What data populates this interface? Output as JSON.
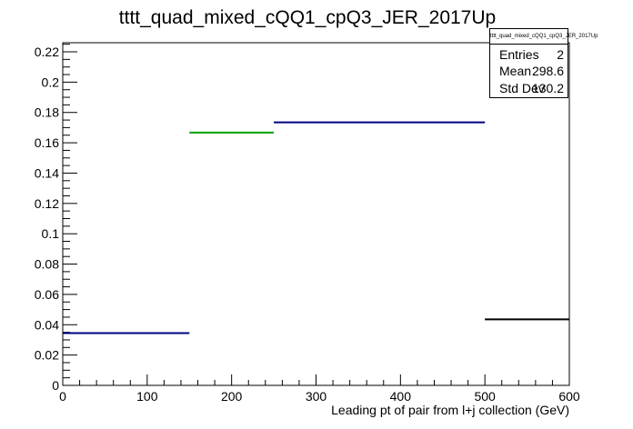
{
  "chart_data": {
    "type": "histogram",
    "title": "tttt_quad_mixed_cQQ1_cpQ3_JER_2017Up",
    "xlabel": "Leading pt of pair from l+j collection (GeV)",
    "ylabel": "",
    "xlim": [
      0,
      600
    ],
    "ylim": [
      0,
      0.226
    ],
    "x_ticks": [
      "0",
      "100",
      "200",
      "300",
      "400",
      "500",
      "600"
    ],
    "y_ticks": [
      "0",
      "0.02",
      "0.04",
      "0.06",
      "0.08",
      "0.1",
      "0.12",
      "0.14",
      "0.16",
      "0.18",
      "0.2",
      "0.22"
    ],
    "bins": [
      {
        "x0": 0,
        "x1": 150,
        "y": 0.0345,
        "color": "#000080"
      },
      {
        "x0": 150,
        "x1": 250,
        "y": 0.1667,
        "color": "#00a000"
      },
      {
        "x0": 250,
        "x1": 500,
        "y": 0.1735,
        "color": "#000080"
      },
      {
        "x0": 500,
        "x1": 600,
        "y": 0.0435,
        "color": "#000000"
      }
    ],
    "stats": {
      "title": "tttt_quad_mixed_cQQ1_cpQ3_JER_2017Up",
      "entries_label": "Entries",
      "entries": "2",
      "mean_label": "Mean",
      "mean": "298.6",
      "stddev_label": "Std Dev",
      "stddev": "130.2"
    }
  }
}
